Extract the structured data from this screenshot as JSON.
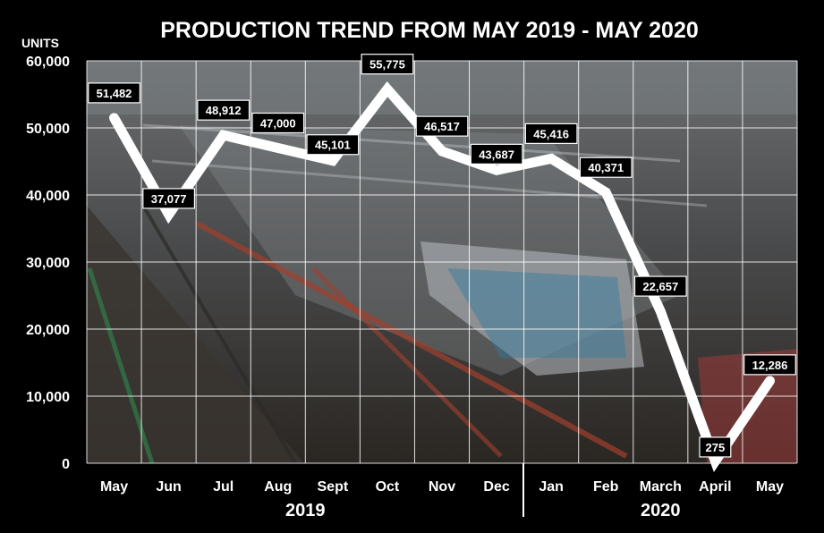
{
  "chart_data": {
    "type": "line",
    "title": "PRODUCTION TREND FROM MAY 2019 - MAY 2020",
    "ylabel": "UNITS",
    "categories": [
      "May",
      "Jun",
      "Jul",
      "Aug",
      "Sept",
      "Oct",
      "Nov",
      "Dec",
      "Jan",
      "Feb",
      "March",
      "April",
      "May"
    ],
    "year_groups": [
      {
        "label": "2019",
        "months": [
          "May",
          "Jun",
          "Jul",
          "Aug",
          "Sept",
          "Oct",
          "Nov",
          "Dec"
        ]
      },
      {
        "label": "2020",
        "months": [
          "Jan",
          "Feb",
          "March",
          "April",
          "May"
        ]
      }
    ],
    "series": [
      {
        "values": [
          51482,
          37077,
          48912,
          47000,
          45101,
          55775,
          46517,
          43687,
          45416,
          40371,
          22657,
          275,
          12286
        ]
      }
    ],
    "data_labels": [
      "51,482",
      "37,077",
      "48,912",
      "47,000",
      "45,101",
      "55,775",
      "46,517",
      "43,687",
      "45,416",
      "40,371",
      "22,657",
      "275",
      "12,286"
    ],
    "ylim": [
      0,
      60000
    ],
    "yticks": [
      0,
      10000,
      20000,
      30000,
      40000,
      50000,
      60000
    ],
    "ytick_labels": [
      "0",
      "10,000",
      "20,000",
      "30,000",
      "40,000",
      "50,000",
      "60,000"
    ],
    "grid": true,
    "colors": {
      "background": "#000000",
      "line": "#ffffff",
      "grid": "#ffffff",
      "label_box": "#000000"
    }
  }
}
